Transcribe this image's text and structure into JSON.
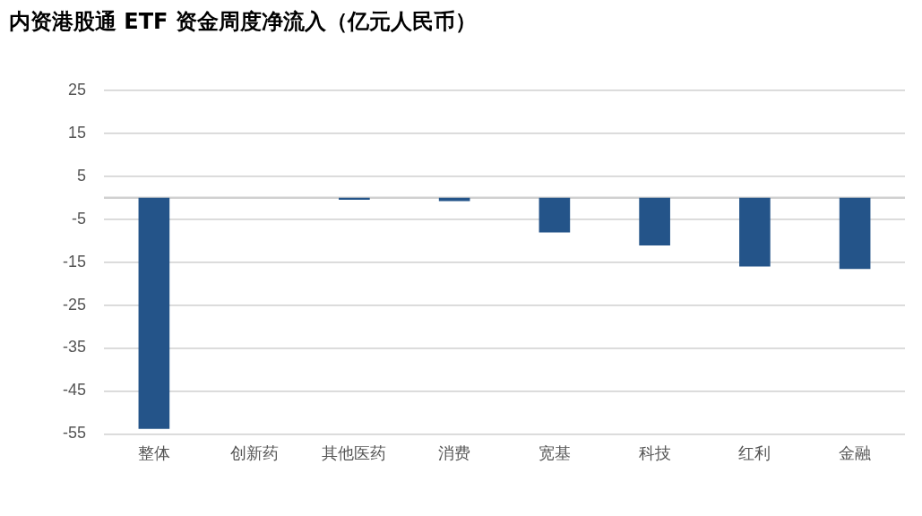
{
  "chart_data": {
    "type": "bar",
    "title": "内资港股通 ETF 资金周度净流入（亿元人民币）",
    "categories": [
      "整体",
      "创新药",
      "其他医药",
      "消费",
      "宽基",
      "科技",
      "红利",
      "金融"
    ],
    "values": [
      -53.8,
      0,
      -0.5,
      -0.8,
      -8.1,
      -11.1,
      -16,
      -16.6
    ],
    "color": "#245489",
    "ylim": [
      -55,
      25
    ],
    "yticks": [
      25,
      15,
      5,
      -5,
      -15,
      -25,
      -35,
      -45,
      -55
    ],
    "grid": "y",
    "legend": false
  }
}
